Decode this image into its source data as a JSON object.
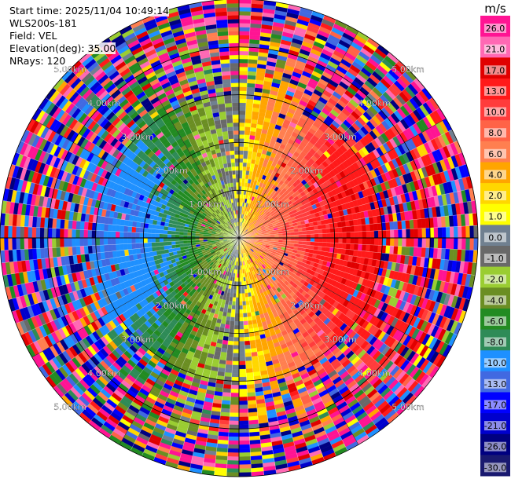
{
  "header": {
    "start_time": "Start time: 2025/11/04 10:49:14",
    "station": "WLS200s-181",
    "field": "Field: VEL",
    "elevation": "Elevation(deg): 35.00",
    "nrays": "NRays: 120"
  },
  "chart_data": {
    "type": "heatmap",
    "projection": "polar (PPI)",
    "field": "VEL",
    "n_rays": 120,
    "range_rings": [
      {
        "value": 1.0,
        "label": "1.00km"
      },
      {
        "value": 2.0,
        "label": "2.00km"
      },
      {
        "value": 3.0,
        "label": "3.00km"
      },
      {
        "value": 4.0,
        "label": "4.00km"
      },
      {
        "value": 5.0,
        "label": "5.00km"
      }
    ],
    "ring_label_angles_deg": [
      -45,
      45,
      135,
      225
    ],
    "max_range_km": 5.0,
    "velocity_pattern": {
      "description": "dipole: positive (red/orange) toward east, negative (blue/green) toward west, noisy beyond ~3 km",
      "peak_positive": 13.0,
      "peak_negative": -13.0,
      "noise_start_km": 3.0
    },
    "colorbar": {
      "unit": "m/s",
      "ticks": [
        "26.0",
        "21.0",
        "17.0",
        "13.0",
        "10.0",
        "8.0",
        "6.0",
        "4.0",
        "2.0",
        "1.0",
        "0.0",
        "-1.0",
        "-2.0",
        "-4.0",
        "-6.0",
        "-8.0",
        "-10.0",
        "-13.0",
        "-17.0",
        "-21.0",
        "-26.0",
        "-30.0"
      ],
      "colors": [
        "#ff1493",
        "#ff69b4",
        "#e00000",
        "#ff1a1a",
        "#ff3c3c",
        "#ff6347",
        "#ff7f50",
        "#ffa500",
        "#ffd700",
        "#ffff00",
        "#708090",
        "#696969",
        "#9acd32",
        "#6b8e23",
        "#228b22",
        "#2e8b57",
        "#1e90ff",
        "#4169e1",
        "#0000ff",
        "#0000cd",
        "#000080",
        "#191970"
      ]
    }
  }
}
